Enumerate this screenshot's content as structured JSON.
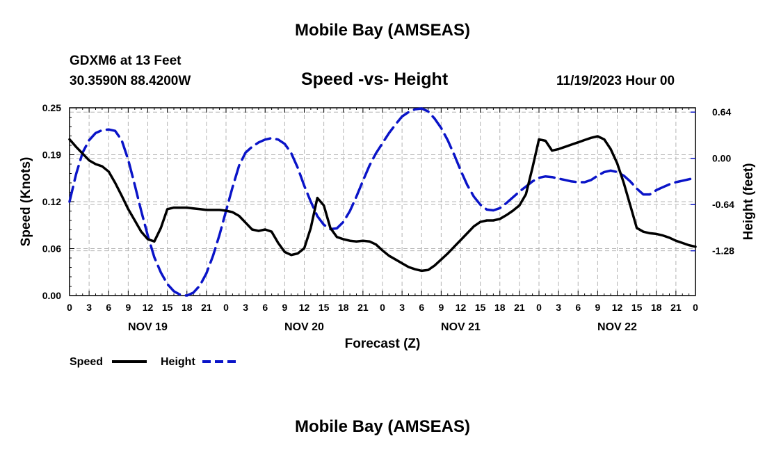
{
  "header": {
    "title": "Mobile Bay (AMSEAS)",
    "station": "GDXM6 at 13 Feet",
    "coords": "30.3590N  88.4200W",
    "chart_title": "Speed -vs- Height",
    "datetime": "11/19/2023 Hour 00"
  },
  "footer": {
    "title": "Mobile Bay (AMSEAS)"
  },
  "colors": {
    "speed": "#000000",
    "height": "#0a14c8",
    "grid": "#b4b4b4"
  },
  "chart_data": {
    "type": "line",
    "title": "Speed -vs- Height",
    "xlabel": "Forecast (Z)",
    "ylabel": "Speed (Knots)",
    "y2label": "Height (feet)",
    "xlim": [
      0,
      96
    ],
    "ylim": [
      0,
      0.25
    ],
    "y2lim": [
      -1.9,
      0.7
    ],
    "x_tick_labels": [
      "0",
      "3",
      "6",
      "9",
      "12",
      "15",
      "18",
      "21",
      "0",
      "3",
      "6",
      "9",
      "12",
      "15",
      "18",
      "21",
      "0",
      "3",
      "6",
      "9",
      "12",
      "15",
      "18",
      "21",
      "0",
      "3",
      "6",
      "9",
      "12",
      "15",
      "18",
      "21",
      "0"
    ],
    "day_labels": [
      {
        "label": "NOV 19",
        "x": 12
      },
      {
        "label": "NOV 20",
        "x": 36
      },
      {
        "label": "NOV 21",
        "x": 60
      },
      {
        "label": "NOV 22",
        "x": 84
      }
    ],
    "y_ticks": [
      "0.00",
      "0.06",
      "0.12",
      "0.19",
      "0.25"
    ],
    "y_tick_values": [
      0,
      0.0625,
      0.125,
      0.1875,
      0.25
    ],
    "y2_ticks": [
      "0.64",
      "0.00",
      "-0.64",
      "-1.28"
    ],
    "y2_tick_values": [
      0.64,
      0,
      -0.64,
      -1.28
    ],
    "grid": true,
    "legend": [
      {
        "name": "Speed",
        "style": "solid"
      },
      {
        "name": "Height",
        "style": "dashed"
      }
    ],
    "series": [
      {
        "name": "Speed",
        "axis": "left",
        "x": [
          0,
          1,
          2,
          3,
          4,
          5,
          6,
          7,
          8,
          9,
          10,
          11,
          12,
          13,
          14,
          15,
          16,
          17,
          18,
          19,
          20,
          21,
          22,
          23,
          24,
          25,
          26,
          27,
          28,
          29,
          30,
          31,
          32,
          33,
          34,
          35,
          36,
          37,
          38,
          39,
          40,
          41,
          42,
          43,
          44,
          45,
          46,
          47,
          48,
          49,
          50,
          51,
          52,
          53,
          54,
          55,
          56,
          57,
          58,
          59,
          60,
          61,
          62,
          63,
          64,
          65,
          66,
          67,
          68,
          69,
          70,
          71,
          72,
          73,
          74,
          75,
          76,
          77,
          78,
          79,
          80,
          81,
          82,
          83,
          84,
          85,
          86,
          87,
          88,
          89,
          90,
          91,
          92,
          93,
          94,
          95,
          96
        ],
        "values": [
          0.208,
          0.198,
          0.189,
          0.18,
          0.175,
          0.172,
          0.165,
          0.15,
          0.133,
          0.115,
          0.1,
          0.085,
          0.075,
          0.072,
          0.09,
          0.115,
          0.117,
          0.117,
          0.117,
          0.116,
          0.115,
          0.114,
          0.114,
          0.114,
          0.113,
          0.111,
          0.106,
          0.097,
          0.088,
          0.086,
          0.088,
          0.085,
          0.07,
          0.058,
          0.054,
          0.056,
          0.063,
          0.09,
          0.13,
          0.12,
          0.09,
          0.078,
          0.075,
          0.073,
          0.072,
          0.073,
          0.072,
          0.068,
          0.06,
          0.053,
          0.048,
          0.043,
          0.038,
          0.035,
          0.033,
          0.034,
          0.04,
          0.048,
          0.056,
          0.065,
          0.074,
          0.083,
          0.092,
          0.098,
          0.1,
          0.1,
          0.102,
          0.107,
          0.113,
          0.12,
          0.135,
          0.17,
          0.208,
          0.206,
          0.193,
          0.195,
          0.198,
          0.201,
          0.204,
          0.207,
          0.21,
          0.212,
          0.208,
          0.195,
          0.176,
          0.15,
          0.12,
          0.09,
          0.085,
          0.083,
          0.082,
          0.08,
          0.077,
          0.073,
          0.07,
          0.067,
          0.065
        ]
      },
      {
        "name": "Height",
        "axis": "right",
        "x": [
          0,
          1,
          2,
          3,
          4,
          5,
          6,
          7,
          8,
          9,
          10,
          11,
          12,
          13,
          14,
          15,
          16,
          17,
          18,
          19,
          20,
          21,
          22,
          23,
          24,
          25,
          26,
          27,
          28,
          29,
          30,
          31,
          32,
          33,
          34,
          35,
          36,
          37,
          38,
          39,
          40,
          41,
          42,
          43,
          44,
          45,
          46,
          47,
          48,
          49,
          50,
          51,
          52,
          53,
          54,
          55,
          56,
          57,
          58,
          59,
          60,
          61,
          62,
          63,
          64,
          65,
          66,
          67,
          68,
          69,
          70,
          71,
          72,
          73,
          74,
          75,
          76,
          77,
          78,
          79,
          80,
          81,
          82,
          83,
          84,
          85,
          86,
          87,
          88,
          89,
          90,
          91,
          92,
          93,
          94,
          95,
          96
        ],
        "values": [
          -0.6,
          -0.22,
          0.08,
          0.25,
          0.35,
          0.39,
          0.4,
          0.38,
          0.25,
          -0.02,
          -0.37,
          -0.73,
          -1.07,
          -1.37,
          -1.58,
          -1.74,
          -1.84,
          -1.89,
          -1.9,
          -1.86,
          -1.76,
          -1.59,
          -1.35,
          -1.06,
          -0.73,
          -0.4,
          -0.1,
          0.08,
          0.16,
          0.22,
          0.26,
          0.28,
          0.26,
          0.2,
          0.07,
          -0.13,
          -0.38,
          -0.6,
          -0.8,
          -0.92,
          -0.98,
          -0.97,
          -0.88,
          -0.73,
          -0.53,
          -0.31,
          -0.1,
          0.07,
          0.21,
          0.35,
          0.47,
          0.58,
          0.64,
          0.68,
          0.69,
          0.65,
          0.55,
          0.42,
          0.25,
          0.05,
          -0.17,
          -0.37,
          -0.53,
          -0.64,
          -0.71,
          -0.72,
          -0.69,
          -0.62,
          -0.54,
          -0.46,
          -0.39,
          -0.32,
          -0.27,
          -0.25,
          -0.26,
          -0.28,
          -0.3,
          -0.32,
          -0.33,
          -0.33,
          -0.3,
          -0.24,
          -0.19,
          -0.17,
          -0.19,
          -0.24,
          -0.32,
          -0.42,
          -0.5,
          -0.5,
          -0.44,
          -0.4,
          -0.36,
          -0.33,
          -0.31,
          -0.29,
          -0.27
        ]
      }
    ]
  }
}
